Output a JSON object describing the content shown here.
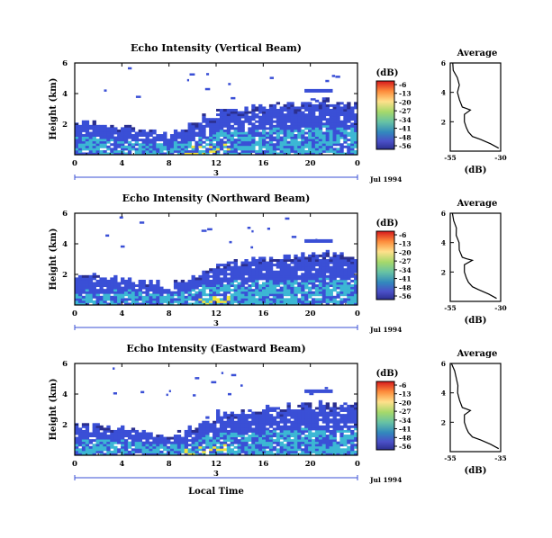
{
  "figure": {
    "date_label": "Jul 1994",
    "xlabel_bottom": "Local Time",
    "colorbar_title": "(dB)",
    "colorbar_ticks": [
      "-6",
      "-13",
      "-20",
      "-27",
      "-34",
      "-41",
      "-48",
      "-56"
    ],
    "colorbar_colors": [
      "#d7191c",
      "#fd8d3c",
      "#fee08b",
      "#a6d96a",
      "#66c2a5",
      "#3288bd",
      "#4b50c8",
      "#2b2f8f"
    ],
    "profile_title": "Average",
    "profile_xlabel": "(dB)",
    "panel_colors": {
      "echo_blue": "#3a4fd6",
      "echo_cyan": "#3cb7d4",
      "echo_yellow": "#f2e33a",
      "axis": "#000000",
      "bracket": "#3a4fd6"
    }
  },
  "chart_data": [
    {
      "type": "heatmap",
      "title": "Echo Intensity (Vertical Beam)",
      "ylabel": "Height (km)",
      "x_ticks": [
        "0",
        "4",
        "8",
        "12",
        "16",
        "20",
        "0"
      ],
      "xlim": [
        0,
        24
      ],
      "y_ticks": [
        "2",
        "4",
        "6"
      ],
      "ylim": [
        0,
        6
      ],
      "day_marker": "3",
      "echo_top_km": [
        2.1,
        2.0,
        1.9,
        1.8,
        1.7,
        1.5,
        1.3,
        1.5,
        2.0,
        2.5,
        2.9,
        3.0,
        3.1,
        3.2,
        3.2,
        3.3,
        3.4,
        3.5,
        3.4,
        3.3
      ],
      "profile": {
        "title": "Average",
        "xlabel": "(dB)",
        "x_ticks": [
          "-55",
          "-30"
        ],
        "xlim": [
          -55,
          -30
        ],
        "y_ticks": [
          "2",
          "4",
          "6"
        ],
        "ylim": [
          0,
          6
        ],
        "heights": [
          0.2,
          0.5,
          0.8,
          1.0,
          1.3,
          1.6,
          2.0,
          2.5,
          2.8,
          2.9,
          3.0,
          3.5,
          4.0,
          4.5,
          5.0,
          5.5,
          6.0
        ],
        "values": [
          -31,
          -35,
          -40,
          -44,
          -46,
          -47,
          -48,
          -48,
          -45,
          -47,
          -49,
          -50,
          -51,
          -51,
          -52,
          -53,
          -54
        ]
      }
    },
    {
      "type": "heatmap",
      "title": "Echo Intensity (Northward Beam)",
      "ylabel": "Height (km)",
      "x_ticks": [
        "0",
        "4",
        "8",
        "12",
        "16",
        "20",
        "0"
      ],
      "xlim": [
        0,
        24
      ],
      "y_ticks": [
        "2",
        "4",
        "6"
      ],
      "ylim": [
        0,
        6
      ],
      "day_marker": "3",
      "echo_top_km": [
        2.0,
        1.9,
        1.8,
        1.7,
        1.6,
        1.5,
        1.3,
        1.5,
        1.9,
        2.4,
        2.8,
        2.9,
        3.0,
        3.1,
        3.1,
        3.2,
        3.3,
        3.4,
        3.3,
        3.2
      ],
      "profile": {
        "title": "Average",
        "xlabel": "(dB)",
        "x_ticks": [
          "-55",
          "-30"
        ],
        "xlim": [
          -55,
          -30
        ],
        "y_ticks": [
          "2",
          "4",
          "6"
        ],
        "ylim": [
          0,
          6
        ],
        "heights": [
          0.2,
          0.5,
          0.8,
          1.0,
          1.3,
          1.6,
          2.0,
          2.5,
          2.8,
          2.9,
          3.0,
          3.5,
          4.0,
          4.5,
          5.0,
          5.5,
          6.0
        ],
        "values": [
          -32,
          -36,
          -41,
          -44,
          -46,
          -47,
          -48,
          -48,
          -44,
          -47,
          -49,
          -50,
          -51,
          -52,
          -52,
          -53,
          -54
        ]
      }
    },
    {
      "type": "heatmap",
      "title": "Echo Intensity (Eastward Beam)",
      "ylabel": "Height (km)",
      "x_ticks": [
        "0",
        "4",
        "8",
        "12",
        "16",
        "20",
        "0"
      ],
      "xlim": [
        0,
        24
      ],
      "y_ticks": [
        "2",
        "4",
        "6"
      ],
      "ylim": [
        0,
        6
      ],
      "day_marker": "3",
      "echo_top_km": [
        2.0,
        1.9,
        1.8,
        1.7,
        1.6,
        1.4,
        1.3,
        1.5,
        1.9,
        2.4,
        2.8,
        2.9,
        3.0,
        3.1,
        3.1,
        3.2,
        3.3,
        3.4,
        3.3,
        3.2
      ],
      "profile": {
        "title": "Average",
        "xlabel": "(dB)",
        "x_ticks": [
          "-55",
          "-35"
        ],
        "xlim": [
          -55,
          -30
        ],
        "y_ticks": [
          "2",
          "4",
          "6"
        ],
        "ylim": [
          0,
          6
        ],
        "heights": [
          0.2,
          0.5,
          0.8,
          1.0,
          1.3,
          1.6,
          2.0,
          2.5,
          2.8,
          2.9,
          3.0,
          3.5,
          4.0,
          4.5,
          5.0,
          5.5,
          6.0
        ],
        "values": [
          -31,
          -35,
          -40,
          -44,
          -46,
          -47,
          -48,
          -48,
          -45,
          -47,
          -49,
          -50,
          -51,
          -51,
          -52,
          -53,
          -54
        ]
      }
    }
  ]
}
